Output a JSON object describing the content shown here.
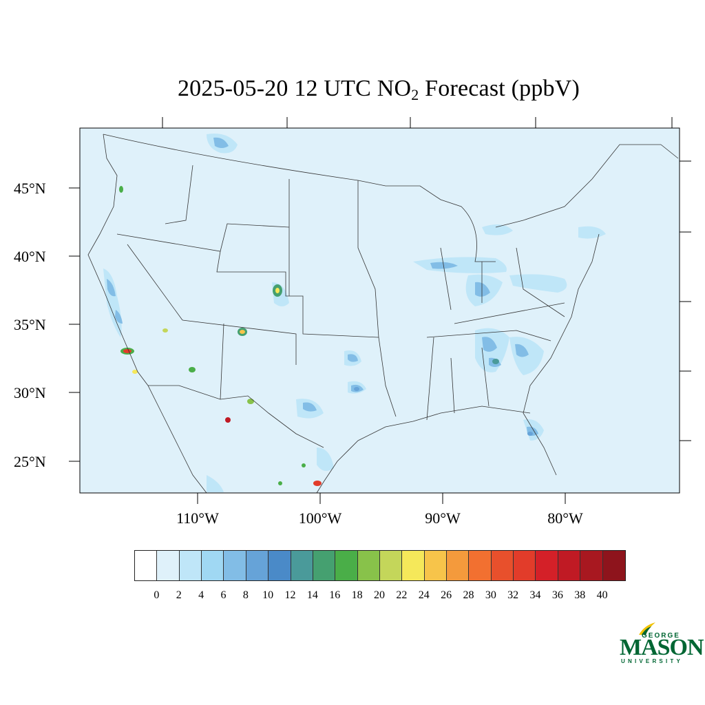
{
  "title": {
    "prefix": "2025-05-20 12 UTC NO",
    "subscript": "2",
    "suffix": " Forecast (ppbV)"
  },
  "map": {
    "ocean_color": "#dff1fa",
    "lat_labels": [
      "45°N",
      "40°N",
      "35°N",
      "30°N",
      "25°N"
    ],
    "lon_labels": [
      "110°W",
      "100°W",
      "90°W",
      "80°W"
    ]
  },
  "colorbar": {
    "colors": [
      "#ffffff",
      "#dff1fa",
      "#bfe6f8",
      "#a0d8f3",
      "#82bde6",
      "#66a3d8",
      "#4a8ac8",
      "#4a9a9a",
      "#45a070",
      "#4aae48",
      "#88c24a",
      "#c4d65a",
      "#f5e85a",
      "#f7c44a",
      "#f49a3c",
      "#f27030",
      "#e8502c",
      "#e23c2a",
      "#d42028",
      "#c01a24",
      "#a81820",
      "#8e141c"
    ],
    "tick_labels": [
      "0",
      "2",
      "4",
      "6",
      "8",
      "10",
      "12",
      "14",
      "16",
      "18",
      "20",
      "22",
      "24",
      "26",
      "28",
      "30",
      "32",
      "34",
      "36",
      "38",
      "40"
    ]
  },
  "logo": {
    "top": "GEORGE",
    "main": "MASON",
    "bottom": "UNIVERSITY",
    "color": "#006633",
    "accent": "#f2c200"
  }
}
